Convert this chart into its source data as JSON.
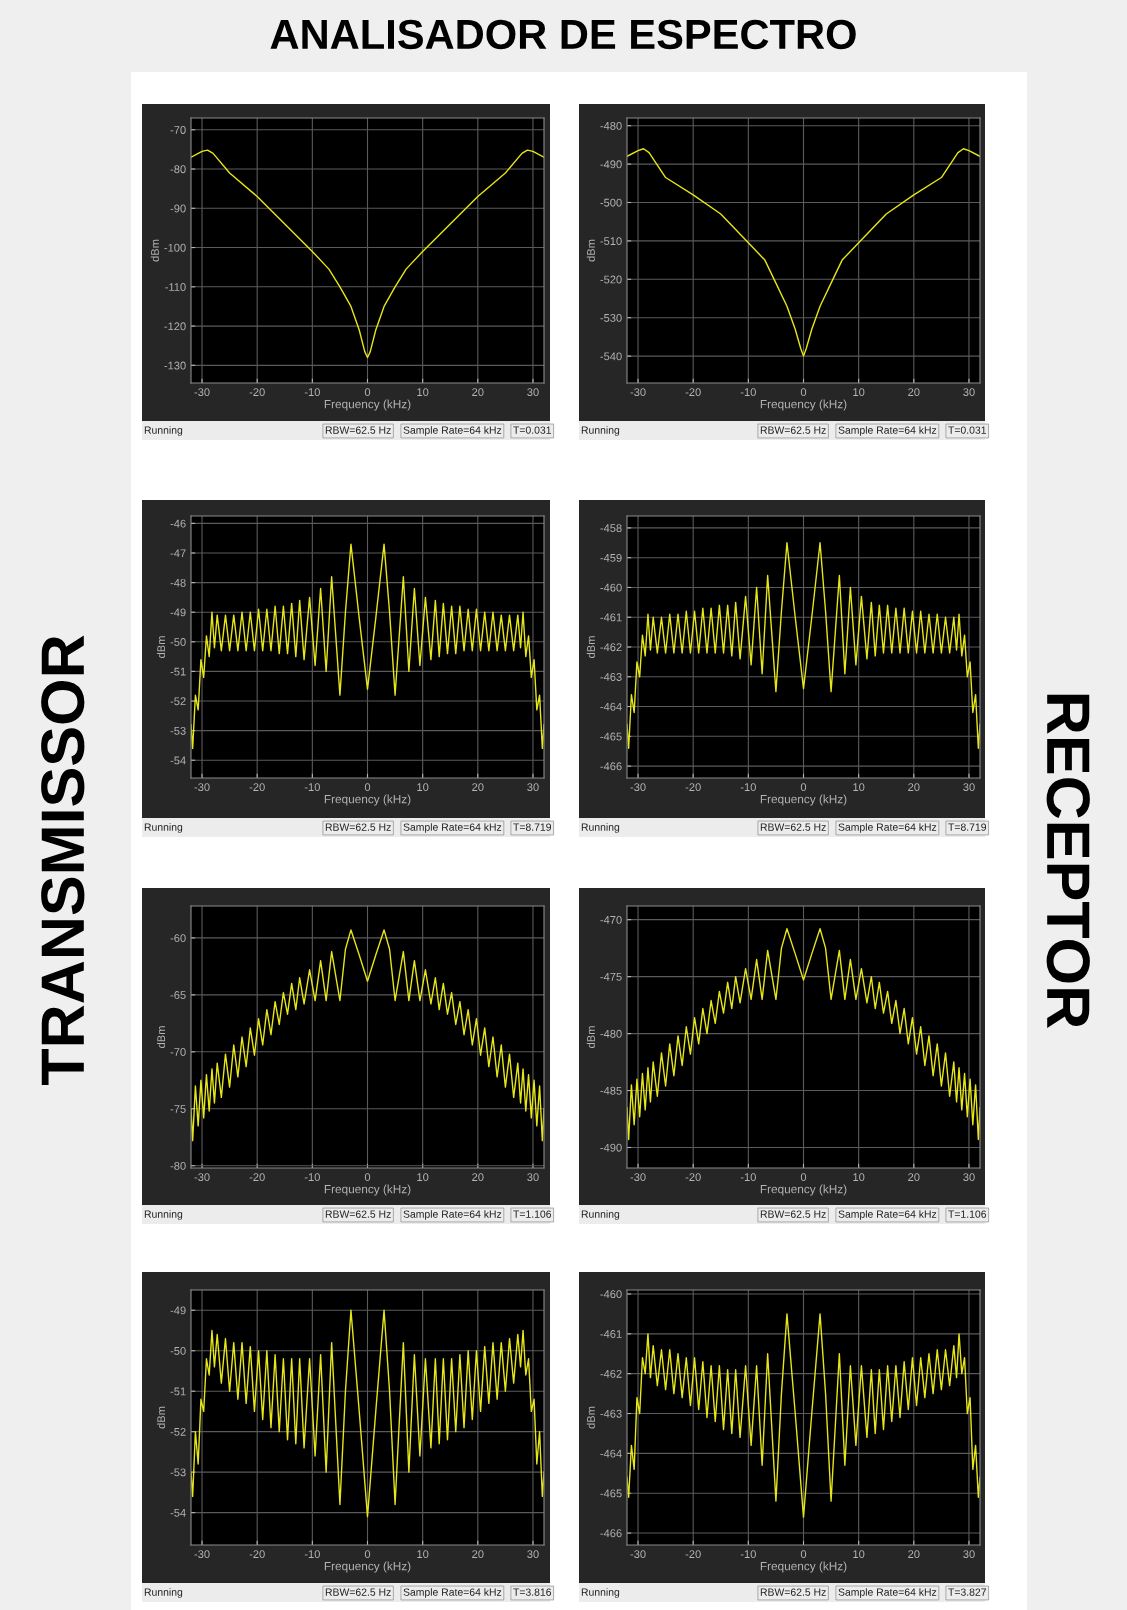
{
  "chart_data": [
    {
      "type": "line",
      "xlabel": "Frequency (kHz)",
      "ylabel": "dBm",
      "grid": true,
      "xlim": [
        -32,
        32
      ],
      "ylim": [
        -134.5,
        -67
      ],
      "xticks": [
        -30,
        -20,
        -10,
        0,
        10,
        20,
        30
      ],
      "yticks": [
        -130,
        -120,
        -110,
        -100,
        -90,
        -80,
        -70
      ],
      "annotations": [
        "Running",
        "RBW=62.5 Hz",
        "Sample Rate=64 kHz",
        "T=0.031"
      ],
      "x": [
        -32,
        -30,
        -29,
        -28,
        -25,
        -20,
        -15,
        -10,
        -7,
        -5,
        -3,
        -1.5,
        -0.5,
        0,
        0.5,
        1.5,
        3,
        5,
        7,
        10,
        15,
        20,
        25,
        28,
        29,
        30,
        32
      ],
      "series": [
        {
          "color": "#e6e619",
          "values": [
            -77,
            -75.5,
            -75.2,
            -76,
            -81,
            -87,
            -94,
            -101,
            -105.5,
            -110,
            -115,
            -121,
            -126.5,
            -128,
            -126.5,
            -121,
            -115,
            -110,
            -105.5,
            -101,
            -94,
            -87,
            -81,
            -76,
            -75.2,
            -75.5,
            -77
          ]
        }
      ]
    },
    {
      "type": "line",
      "xlabel": "Frequency (kHz)",
      "ylabel": "dBm",
      "grid": true,
      "xlim": [
        -32,
        32
      ],
      "ylim": [
        -547,
        -478
      ],
      "xticks": [
        -30,
        -20,
        -10,
        0,
        10,
        20,
        30
      ],
      "yticks": [
        -540,
        -530,
        -520,
        -510,
        -500,
        -490,
        -480
      ],
      "annotations": [
        "Running",
        "RBW=62.5 Hz",
        "Sample Rate=64 kHz",
        "T=0.031"
      ],
      "x": [
        -32,
        -30,
        -29,
        -28,
        -25,
        -20,
        -15,
        -10,
        -7,
        -5,
        -3,
        -1.5,
        -0.5,
        0,
        0.5,
        1.5,
        3,
        5,
        7,
        10,
        15,
        20,
        25,
        28,
        29,
        30,
        32
      ],
      "series": [
        {
          "color": "#e6e619",
          "values": [
            -488,
            -486.5,
            -486,
            -487,
            -493.5,
            -498,
            -503,
            -510.5,
            -515,
            -521,
            -527,
            -533,
            -538,
            -540,
            -538,
            -533,
            -527,
            -521,
            -515,
            -510.5,
            -503,
            -498,
            -493.5,
            -487,
            -486,
            -486.5,
            -488
          ]
        }
      ]
    },
    {
      "type": "line",
      "xlabel": "Frequency (kHz)",
      "ylabel": "dBm",
      "grid": true,
      "xlim": [
        -32,
        32
      ],
      "ylim": [
        -54.6,
        -45.75
      ],
      "xticks": [
        -30,
        -20,
        -10,
        0,
        10,
        20,
        30
      ],
      "yticks": [
        -54,
        -53,
        -52,
        -51,
        -50,
        -49,
        -48,
        -47,
        -46
      ],
      "annotations": [
        "Running",
        "RBW=62.5 Hz",
        "Sample Rate=64 kHz",
        "T=8.719"
      ],
      "x": [
        -32,
        -31.7,
        -31.2,
        -30.7,
        -30.2,
        -29.7,
        -29.2,
        -28.7,
        -28.2,
        -27.75,
        -27.25,
        -26.5,
        -25.75,
        -25,
        -24.25,
        -23.5,
        -22.75,
        -22,
        -21.25,
        -20.5,
        -19.75,
        -19,
        -18.25,
        -17.5,
        -16.75,
        -16,
        -15.25,
        -14.5,
        -13.75,
        -13,
        -12.3,
        -11.5,
        -10.5,
        -9.5,
        -8.5,
        -7.5,
        -6.5,
        -5,
        -4,
        -3,
        -1.5,
        0,
        1.5,
        3,
        4,
        5,
        6.5,
        7.5,
        8.5,
        9.5,
        10.5,
        11.5,
        12.3,
        13,
        13.75,
        14.5,
        15.25,
        16,
        16.75,
        17.5,
        18.25,
        19,
        19.75,
        20.5,
        21.25,
        22,
        22.75,
        23.5,
        24.25,
        25,
        25.75,
        26.5,
        27.25,
        27.75,
        28.2,
        28.7,
        29.2,
        29.7,
        30.2,
        30.7,
        31.2,
        31.7,
        32
      ],
      "series": [
        {
          "color": "#e6e619",
          "values": [
            -52.8,
            -53.6,
            -51.8,
            -52.3,
            -50.6,
            -51.2,
            -49.8,
            -50.5,
            -49.0,
            -50.2,
            -49.1,
            -50.3,
            -49.1,
            -50.3,
            -49.1,
            -50.3,
            -49.0,
            -50.3,
            -49.0,
            -50.3,
            -48.9,
            -50.3,
            -48.9,
            -50.3,
            -48.8,
            -50.4,
            -48.8,
            -50.4,
            -48.7,
            -50.5,
            -48.6,
            -50.6,
            -48.5,
            -50.8,
            -48.2,
            -51.0,
            -47.8,
            -51.8,
            -49.0,
            -46.7,
            -49.2,
            -51.6,
            -49.2,
            -46.7,
            -49.0,
            -51.8,
            -47.8,
            -51.0,
            -48.2,
            -50.8,
            -48.5,
            -50.6,
            -48.6,
            -50.5,
            -48.7,
            -50.4,
            -48.8,
            -50.4,
            -48.8,
            -50.3,
            -48.9,
            -50.3,
            -48.9,
            -50.3,
            -49.0,
            -50.3,
            -49.0,
            -50.3,
            -49.1,
            -50.3,
            -49.1,
            -50.3,
            -49.1,
            -50.2,
            -49.0,
            -50.5,
            -49.8,
            -51.2,
            -50.6,
            -52.3,
            -51.8,
            -53.6,
            -52.8
          ]
        }
      ]
    },
    {
      "type": "line",
      "xlabel": "Frequency (kHz)",
      "ylabel": "dBm",
      "grid": true,
      "xlim": [
        -32,
        32
      ],
      "ylim": [
        -466.4,
        -457.6
      ],
      "xticks": [
        -30,
        -20,
        -10,
        0,
        10,
        20,
        30
      ],
      "yticks": [
        -466,
        -465,
        -464,
        -463,
        -462,
        -461,
        -460,
        -459,
        -458
      ],
      "annotations": [
        "Running",
        "RBW=62.5 Hz",
        "Sample Rate=64 kHz",
        "T=8.719"
      ],
      "x": [
        -32,
        -31.7,
        -31.2,
        -30.7,
        -30.2,
        -29.7,
        -29.2,
        -28.7,
        -28.2,
        -27.75,
        -27.25,
        -26.5,
        -25.75,
        -25,
        -24.25,
        -23.5,
        -22.75,
        -22,
        -21.25,
        -20.5,
        -19.75,
        -19,
        -18.25,
        -17.5,
        -16.75,
        -16,
        -15.25,
        -14.5,
        -13.75,
        -13,
        -12.3,
        -11.5,
        -10.5,
        -9.5,
        -8.5,
        -7.5,
        -6.5,
        -5,
        -4,
        -3,
        -1.5,
        0,
        1.5,
        3,
        4,
        5,
        6.5,
        7.5,
        8.5,
        9.5,
        10.5,
        11.5,
        12.3,
        13,
        13.75,
        14.5,
        15.25,
        16,
        16.75,
        17.5,
        18.25,
        19,
        19.75,
        20.5,
        21.25,
        22,
        22.75,
        23.5,
        24.25,
        25,
        25.75,
        26.5,
        27.25,
        27.75,
        28.2,
        28.7,
        29.2,
        29.7,
        30.2,
        30.7,
        31.2,
        31.7,
        32
      ],
      "series": [
        {
          "color": "#e6e619",
          "values": [
            -464.6,
            -465.4,
            -463.6,
            -464.2,
            -462.5,
            -463.0,
            -461.6,
            -462.3,
            -460.9,
            -462.1,
            -461.0,
            -462.2,
            -461.0,
            -462.2,
            -460.9,
            -462.2,
            -460.9,
            -462.2,
            -460.8,
            -462.2,
            -460.8,
            -462.2,
            -460.7,
            -462.2,
            -460.7,
            -462.2,
            -460.6,
            -462.2,
            -460.6,
            -462.3,
            -460.5,
            -462.4,
            -460.3,
            -462.6,
            -460.0,
            -462.9,
            -459.6,
            -463.5,
            -460.8,
            -458.5,
            -461.0,
            -463.4,
            -461.0,
            -458.5,
            -460.8,
            -463.5,
            -459.6,
            -462.9,
            -460.0,
            -462.6,
            -460.3,
            -462.4,
            -460.5,
            -462.3,
            -460.6,
            -462.2,
            -460.6,
            -462.2,
            -460.7,
            -462.2,
            -460.7,
            -462.2,
            -460.8,
            -462.2,
            -460.8,
            -462.2,
            -460.9,
            -462.2,
            -460.9,
            -462.2,
            -461.0,
            -462.2,
            -461.0,
            -462.1,
            -460.9,
            -462.3,
            -461.6,
            -463.0,
            -462.5,
            -464.2,
            -463.6,
            -465.4,
            -464.6
          ]
        }
      ]
    },
    {
      "type": "line",
      "xlabel": "Frequency (kHz)",
      "ylabel": "dBm",
      "grid": true,
      "xlim": [
        -32,
        32
      ],
      "ylim": [
        -80.2,
        -57.2
      ],
      "xticks": [
        -30,
        -20,
        -10,
        0,
        10,
        20,
        30
      ],
      "yticks": [
        -80,
        -75,
        -70,
        -65,
        -60
      ],
      "annotations": [
        "Running",
        "RBW=62.5 Hz",
        "Sample Rate=64 kHz",
        "T=1.106"
      ],
      "x": [
        -32,
        -31.7,
        -31.2,
        -30.7,
        -30.2,
        -29.7,
        -29.2,
        -28.7,
        -28.2,
        -27.75,
        -27.25,
        -26.5,
        -25.75,
        -25,
        -24.25,
        -23.5,
        -22.75,
        -22,
        -21.25,
        -20.5,
        -19.75,
        -19,
        -18.25,
        -17.5,
        -16.75,
        -16,
        -15.25,
        -14.5,
        -13.75,
        -13,
        -12.3,
        -11.5,
        -10.5,
        -9.5,
        -8.5,
        -7.5,
        -6.5,
        -5,
        -4,
        -3,
        -1.5,
        0,
        1.5,
        3,
        4,
        5,
        6.5,
        7.5,
        8.5,
        9.5,
        10.5,
        11.5,
        12.3,
        13,
        13.75,
        14.5,
        15.25,
        16,
        16.75,
        17.5,
        18.25,
        19,
        19.75,
        20.5,
        21.25,
        22,
        22.75,
        23.5,
        24.25,
        25,
        25.75,
        26.5,
        27.25,
        27.75,
        28.2,
        28.7,
        29.2,
        29.7,
        30.2,
        30.7,
        31.2,
        31.7,
        32
      ],
      "series": [
        {
          "color": "#e6e619",
          "values": [
            -75.0,
            -77.8,
            -73.0,
            -76.5,
            -72.5,
            -75.8,
            -72.0,
            -75.2,
            -71.5,
            -74.5,
            -71.0,
            -74.0,
            -70.2,
            -73.1,
            -69.4,
            -72.2,
            -68.7,
            -71.3,
            -67.9,
            -70.3,
            -67.1,
            -69.4,
            -66.3,
            -68.5,
            -65.6,
            -67.6,
            -64.8,
            -66.7,
            -64.0,
            -66.3,
            -63.5,
            -65.8,
            -62.8,
            -65.5,
            -62.0,
            -65.5,
            -61.2,
            -65.5,
            -61.0,
            -59.3,
            -61.5,
            -63.8,
            -61.5,
            -59.3,
            -61.0,
            -65.5,
            -61.2,
            -65.5,
            -62.0,
            -65.5,
            -62.8,
            -65.8,
            -63.5,
            -66.3,
            -64.0,
            -66.7,
            -64.8,
            -67.6,
            -65.6,
            -68.5,
            -66.3,
            -69.4,
            -67.1,
            -70.3,
            -67.9,
            -71.3,
            -68.7,
            -72.2,
            -69.4,
            -73.1,
            -70.2,
            -74.0,
            -71.0,
            -74.5,
            -71.5,
            -75.2,
            -72.0,
            -75.8,
            -72.5,
            -76.5,
            -73.0,
            -77.8,
            -75.0
          ]
        }
      ]
    },
    {
      "type": "line",
      "xlabel": "Frequency (kHz)",
      "ylabel": "dBm",
      "grid": true,
      "xlim": [
        -32,
        32
      ],
      "ylim": [
        -491.8,
        -468.8
      ],
      "xticks": [
        -30,
        -20,
        -10,
        0,
        10,
        20,
        30
      ],
      "yticks": [
        -490,
        -485,
        -480,
        -475,
        -470
      ],
      "annotations": [
        "Running",
        "RBW=62.5 Hz",
        "Sample Rate=64 kHz",
        "T=1.106"
      ],
      "x": [
        -32,
        -31.7,
        -31.2,
        -30.7,
        -30.2,
        -29.7,
        -29.2,
        -28.7,
        -28.2,
        -27.75,
        -27.25,
        -26.5,
        -25.75,
        -25,
        -24.25,
        -23.5,
        -22.75,
        -22,
        -21.25,
        -20.5,
        -19.75,
        -19,
        -18.25,
        -17.5,
        -16.75,
        -16,
        -15.25,
        -14.5,
        -13.75,
        -13,
        -12.3,
        -11.5,
        -10.5,
        -9.5,
        -8.5,
        -7.5,
        -6.5,
        -5,
        -4,
        -3,
        -1.5,
        0,
        1.5,
        3,
        4,
        5,
        6.5,
        7.5,
        8.5,
        9.5,
        10.5,
        11.5,
        12.3,
        13,
        13.75,
        14.5,
        15.25,
        16,
        16.75,
        17.5,
        18.25,
        19,
        19.75,
        20.5,
        21.25,
        22,
        22.75,
        23.5,
        24.25,
        25,
        25.75,
        26.5,
        27.25,
        27.75,
        28.2,
        28.7,
        29.2,
        29.7,
        30.2,
        30.7,
        31.2,
        31.7,
        32
      ],
      "series": [
        {
          "color": "#e6e619",
          "values": [
            -486.5,
            -489.3,
            -484.5,
            -488.0,
            -484.0,
            -487.3,
            -483.5,
            -486.7,
            -483.0,
            -486.0,
            -482.5,
            -485.5,
            -481.7,
            -484.6,
            -480.9,
            -483.7,
            -480.2,
            -482.8,
            -479.4,
            -481.8,
            -478.6,
            -480.9,
            -477.8,
            -480.0,
            -477.1,
            -479.1,
            -476.3,
            -478.2,
            -475.5,
            -477.8,
            -475.0,
            -477.3,
            -474.3,
            -477.0,
            -473.5,
            -477.0,
            -472.7,
            -477.0,
            -472.5,
            -470.8,
            -473.0,
            -475.3,
            -473.0,
            -470.8,
            -472.5,
            -477.0,
            -472.7,
            -477.0,
            -473.5,
            -477.0,
            -474.3,
            -477.3,
            -475.0,
            -477.8,
            -475.5,
            -478.2,
            -476.3,
            -479.1,
            -477.1,
            -480.0,
            -477.8,
            -480.9,
            -478.6,
            -481.8,
            -479.4,
            -482.8,
            -480.2,
            -483.7,
            -480.9,
            -484.6,
            -481.7,
            -485.5,
            -482.5,
            -486.0,
            -483.0,
            -486.7,
            -483.5,
            -487.3,
            -484.0,
            -488.0,
            -484.5,
            -489.3,
            -486.5
          ]
        }
      ]
    },
    {
      "type": "line",
      "xlabel": "Frequency (kHz)",
      "ylabel": "dBm",
      "grid": true,
      "xlim": [
        -32,
        32
      ],
      "ylim": [
        -54.8,
        -48.5
      ],
      "xticks": [
        -30,
        -20,
        -10,
        0,
        10,
        20,
        30
      ],
      "yticks": [
        -54,
        -53,
        -52,
        -51,
        -50,
        -49
      ],
      "annotations": [
        "Running",
        "RBW=62.5 Hz",
        "Sample Rate=64 kHz",
        "T=3.816"
      ],
      "x": [
        -32,
        -31.7,
        -31.2,
        -30.7,
        -30.2,
        -29.7,
        -29.2,
        -28.7,
        -28.2,
        -27.75,
        -27.25,
        -26.5,
        -25.75,
        -25,
        -24.25,
        -23.5,
        -22.75,
        -22,
        -21.25,
        -20.5,
        -19.75,
        -19,
        -18.25,
        -17.5,
        -16.75,
        -16,
        -15.25,
        -14.5,
        -13.75,
        -13,
        -12.3,
        -11.5,
        -10.5,
        -9.5,
        -8.5,
        -7.5,
        -6.5,
        -5,
        -4,
        -3,
        -1.5,
        0,
        1.5,
        3,
        4,
        5,
        6.5,
        7.5,
        8.5,
        9.5,
        10.5,
        11.5,
        12.3,
        13,
        13.75,
        14.5,
        15.25,
        16,
        16.75,
        17.5,
        18.25,
        19,
        19.75,
        20.5,
        21.25,
        22,
        22.75,
        23.5,
        24.25,
        25,
        25.75,
        26.5,
        27.25,
        27.75,
        28.2,
        28.7,
        29.2,
        29.7,
        30.2,
        30.7,
        31.2,
        31.7,
        32
      ],
      "series": [
        {
          "color": "#e6e619",
          "values": [
            -53.0,
            -53.6,
            -52.0,
            -52.8,
            -51.2,
            -51.5,
            -50.2,
            -50.6,
            -49.5,
            -50.4,
            -49.6,
            -50.8,
            -49.7,
            -51.0,
            -49.8,
            -51.2,
            -49.8,
            -51.3,
            -49.9,
            -51.5,
            -50.0,
            -51.7,
            -50.0,
            -51.9,
            -50.1,
            -52.0,
            -50.2,
            -52.2,
            -50.2,
            -52.3,
            -50.2,
            -52.4,
            -50.2,
            -52.6,
            -50.1,
            -53.0,
            -49.8,
            -53.8,
            -51.0,
            -49.0,
            -51.5,
            -54.1,
            -51.5,
            -49.0,
            -51.0,
            -53.8,
            -49.8,
            -53.0,
            -50.1,
            -52.6,
            -50.2,
            -52.4,
            -50.2,
            -52.3,
            -50.2,
            -52.2,
            -50.2,
            -52.0,
            -50.1,
            -51.9,
            -50.0,
            -51.7,
            -50.0,
            -51.5,
            -49.9,
            -51.3,
            -49.8,
            -51.2,
            -49.8,
            -51.0,
            -49.7,
            -50.8,
            -49.6,
            -50.4,
            -49.5,
            -50.6,
            -50.2,
            -51.5,
            -51.2,
            -52.8,
            -52.0,
            -53.6,
            -53.0
          ]
        }
      ]
    },
    {
      "type": "line",
      "xlabel": "Frequency (kHz)",
      "ylabel": "dBm",
      "grid": true,
      "xlim": [
        -32,
        32
      ],
      "ylim": [
        -466.3,
        -459.9
      ],
      "xticks": [
        -30,
        -20,
        -10,
        0,
        10,
        20,
        30
      ],
      "yticks": [
        -466,
        -465,
        -464,
        -463,
        -462,
        -461,
        -460
      ],
      "annotations": [
        "Running",
        "RBW=62.5 Hz",
        "Sample Rate=64 kHz",
        "T=3.827"
      ],
      "x": [
        -32,
        -31.7,
        -31.2,
        -30.7,
        -30.2,
        -29.7,
        -29.2,
        -28.7,
        -28.2,
        -27.75,
        -27.25,
        -26.5,
        -25.75,
        -25,
        -24.25,
        -23.5,
        -22.75,
        -22,
        -21.25,
        -20.5,
        -19.75,
        -19,
        -18.25,
        -17.5,
        -16.75,
        -16,
        -15.25,
        -14.5,
        -13.75,
        -13,
        -12.3,
        -11.5,
        -10.5,
        -9.5,
        -8.5,
        -7.5,
        -6.5,
        -5,
        -4,
        -3,
        -1.5,
        0,
        1.5,
        3,
        4,
        5,
        6.5,
        7.5,
        8.5,
        9.5,
        10.5,
        11.5,
        12.3,
        13,
        13.75,
        14.5,
        15.25,
        16,
        16.75,
        17.5,
        18.25,
        19,
        19.75,
        20.5,
        21.25,
        22,
        22.75,
        23.5,
        24.25,
        25,
        25.75,
        26.5,
        27.25,
        27.75,
        28.2,
        28.7,
        29.2,
        29.7,
        30.2,
        30.7,
        31.2,
        31.7,
        32
      ],
      "series": [
        {
          "color": "#e6e619",
          "values": [
            -464.6,
            -465.1,
            -463.8,
            -464.4,
            -462.6,
            -463.0,
            -461.6,
            -462.0,
            -461.0,
            -462.1,
            -461.3,
            -462.3,
            -461.4,
            -462.4,
            -461.4,
            -462.5,
            -461.5,
            -462.6,
            -461.6,
            -462.8,
            -461.6,
            -462.9,
            -461.7,
            -463.1,
            -461.8,
            -463.2,
            -461.8,
            -463.4,
            -461.9,
            -463.5,
            -461.9,
            -463.6,
            -461.8,
            -463.8,
            -461.8,
            -464.3,
            -461.5,
            -465.2,
            -462.5,
            -460.5,
            -463.0,
            -465.6,
            -463.0,
            -460.5,
            -462.5,
            -465.2,
            -461.5,
            -464.3,
            -461.8,
            -463.8,
            -461.8,
            -463.6,
            -461.9,
            -463.5,
            -461.9,
            -463.4,
            -461.8,
            -463.2,
            -461.8,
            -463.1,
            -461.7,
            -462.9,
            -461.6,
            -462.8,
            -461.6,
            -462.6,
            -461.5,
            -462.5,
            -461.4,
            -462.4,
            -461.4,
            -462.3,
            -461.3,
            -462.1,
            -461.0,
            -462.0,
            -461.6,
            -463.0,
            -462.6,
            -464.4,
            -463.8,
            -465.1,
            -464.6
          ]
        }
      ]
    },
    {
      "type": "other",
      "title": "ANALISADOR DE ESPECTRO",
      "annotations": [
        "TRANSMISSOR",
        "RECEPTOR"
      ]
    }
  ]
}
